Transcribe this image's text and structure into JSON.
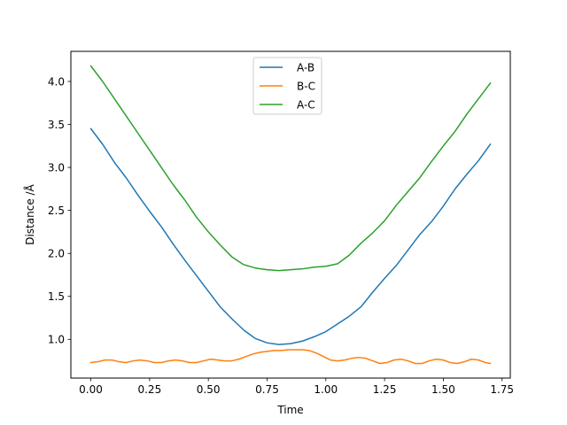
{
  "chart_data": {
    "type": "line",
    "xlabel": "Time",
    "ylabel": "Distance /Å",
    "xlim": [
      -0.085,
      1.785
    ],
    "ylim": [
      0.55,
      4.35
    ],
    "xticks": [
      "0.00",
      "0.25",
      "0.50",
      "0.75",
      "1.00",
      "1.25",
      "1.50",
      "1.75"
    ],
    "yticks": [
      "1.0",
      "1.5",
      "2.0",
      "2.5",
      "3.0",
      "3.5",
      "4.0"
    ],
    "legend_position": "top-center",
    "grid": false,
    "series": [
      {
        "name": "A-B",
        "color": "#1f77b4",
        "x": [
          0.0,
          0.05,
          0.1,
          0.15,
          0.2,
          0.25,
          0.3,
          0.35,
          0.4,
          0.45,
          0.5,
          0.55,
          0.6,
          0.65,
          0.7,
          0.75,
          0.8,
          0.85,
          0.9,
          0.95,
          1.0,
          1.05,
          1.1,
          1.15,
          1.2,
          1.25,
          1.3,
          1.35,
          1.4,
          1.45,
          1.5,
          1.55,
          1.6,
          1.65,
          1.7
        ],
        "y": [
          3.45,
          3.27,
          3.06,
          2.88,
          2.68,
          2.49,
          2.31,
          2.11,
          1.92,
          1.74,
          1.56,
          1.38,
          1.24,
          1.11,
          1.01,
          0.96,
          0.94,
          0.95,
          0.98,
          1.03,
          1.09,
          1.18,
          1.27,
          1.38,
          1.55,
          1.71,
          1.86,
          2.04,
          2.22,
          2.37,
          2.55,
          2.75,
          2.92,
          3.08,
          3.27
        ]
      },
      {
        "name": "B-C",
        "color": "#ff7f0e",
        "x": [
          0.0,
          0.03,
          0.06,
          0.09,
          0.12,
          0.15,
          0.18,
          0.21,
          0.24,
          0.27,
          0.3,
          0.33,
          0.36,
          0.39,
          0.42,
          0.45,
          0.48,
          0.51,
          0.54,
          0.57,
          0.6,
          0.63,
          0.66,
          0.69,
          0.72,
          0.75,
          0.78,
          0.81,
          0.84,
          0.87,
          0.9,
          0.93,
          0.96,
          0.99,
          1.02,
          1.05,
          1.08,
          1.11,
          1.14,
          1.17,
          1.2,
          1.23,
          1.26,
          1.29,
          1.32,
          1.35,
          1.38,
          1.41,
          1.44,
          1.47,
          1.5,
          1.53,
          1.56,
          1.59,
          1.62,
          1.65,
          1.68,
          1.7
        ],
        "y": [
          0.73,
          0.74,
          0.76,
          0.76,
          0.74,
          0.73,
          0.75,
          0.76,
          0.75,
          0.73,
          0.73,
          0.75,
          0.76,
          0.75,
          0.73,
          0.73,
          0.75,
          0.77,
          0.76,
          0.75,
          0.75,
          0.77,
          0.8,
          0.83,
          0.85,
          0.86,
          0.87,
          0.87,
          0.88,
          0.88,
          0.88,
          0.87,
          0.84,
          0.8,
          0.76,
          0.75,
          0.76,
          0.78,
          0.79,
          0.78,
          0.75,
          0.72,
          0.73,
          0.76,
          0.77,
          0.75,
          0.72,
          0.72,
          0.75,
          0.77,
          0.76,
          0.73,
          0.72,
          0.74,
          0.77,
          0.76,
          0.73,
          0.72
        ]
      },
      {
        "name": "A-C",
        "color": "#2ca02c",
        "x": [
          0.0,
          0.05,
          0.1,
          0.15,
          0.2,
          0.25,
          0.3,
          0.35,
          0.4,
          0.45,
          0.5,
          0.55,
          0.6,
          0.65,
          0.7,
          0.75,
          0.8,
          0.85,
          0.9,
          0.95,
          1.0,
          1.05,
          1.1,
          1.15,
          1.2,
          1.25,
          1.3,
          1.35,
          1.4,
          1.45,
          1.5,
          1.55,
          1.6,
          1.65,
          1.7
        ],
        "y": [
          4.18,
          4.0,
          3.8,
          3.6,
          3.4,
          3.2,
          3.0,
          2.8,
          2.62,
          2.42,
          2.25,
          2.1,
          1.96,
          1.87,
          1.83,
          1.81,
          1.8,
          1.81,
          1.82,
          1.84,
          1.85,
          1.88,
          1.98,
          2.12,
          2.24,
          2.38,
          2.56,
          2.72,
          2.88,
          3.07,
          3.25,
          3.42,
          3.62,
          3.8,
          3.98
        ]
      }
    ]
  }
}
